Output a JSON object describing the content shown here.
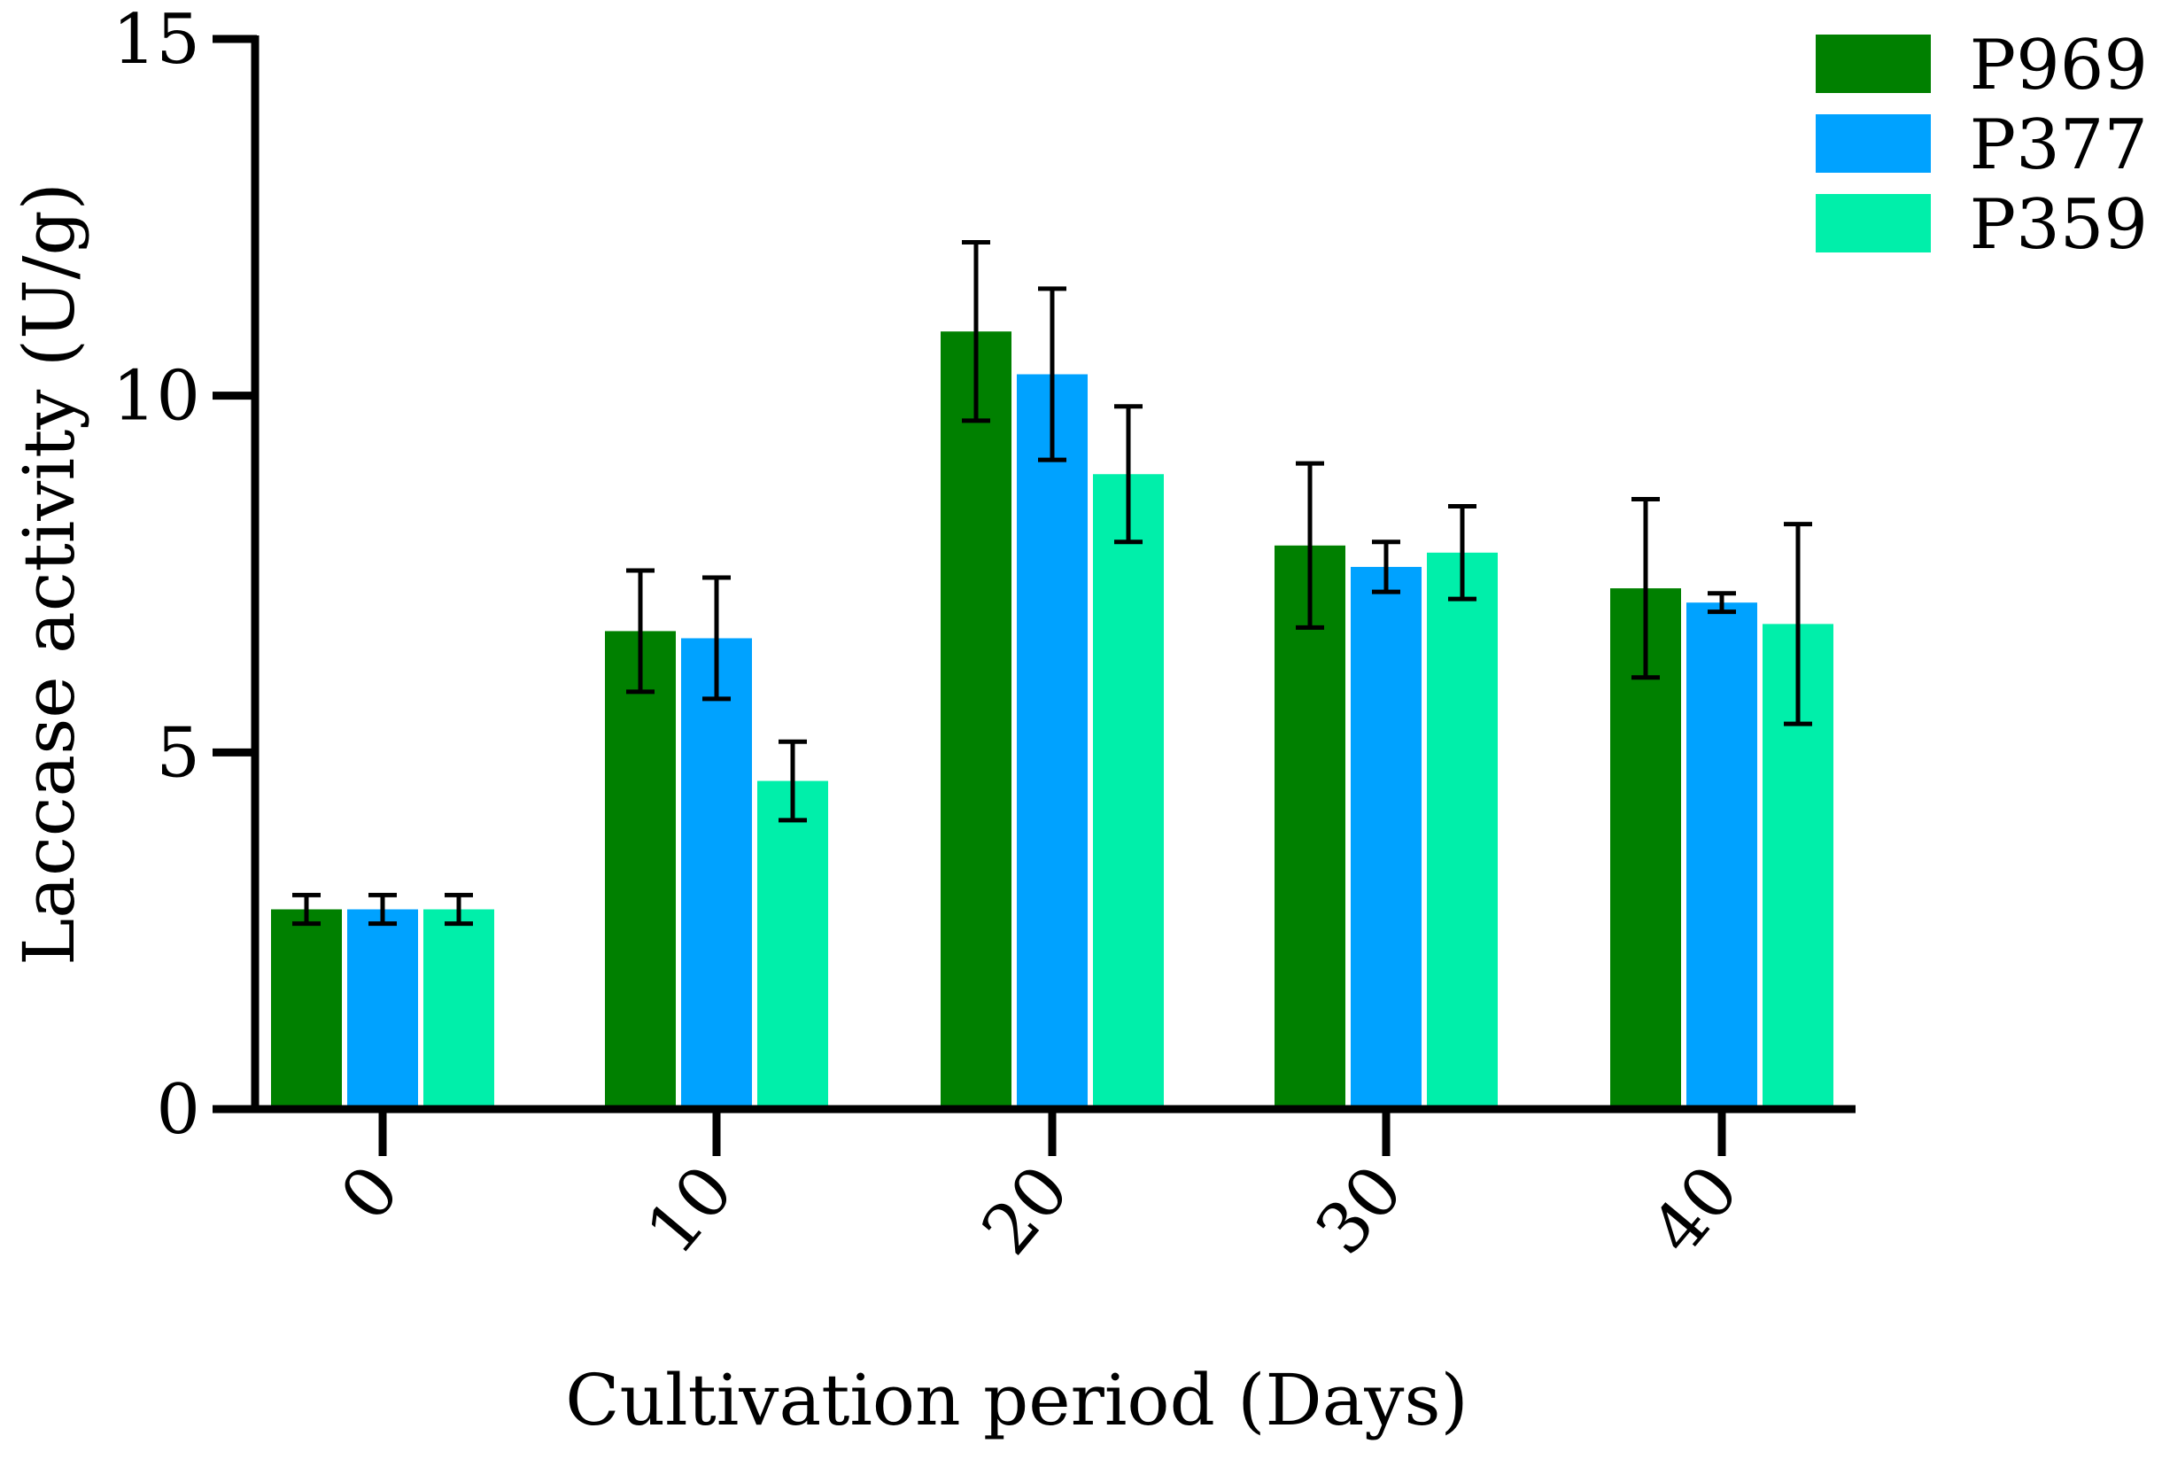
{
  "chart_data": {
    "type": "bar",
    "title": "",
    "xlabel": "Cultivation period (Days)",
    "ylabel": "Laccase activity (U/g)",
    "ylim": [
      0,
      15
    ],
    "yticks": [
      0,
      5,
      10,
      15
    ],
    "categories": [
      "0",
      "10",
      "20",
      "30",
      "40"
    ],
    "series": [
      {
        "name": "P969",
        "color": "#008000",
        "values": [
          2.8,
          6.7,
          10.9,
          7.9,
          7.3
        ],
        "errors": [
          0.2,
          0.85,
          1.25,
          1.15,
          1.25
        ]
      },
      {
        "name": "P377",
        "color": "#00A2FF",
        "values": [
          2.8,
          6.6,
          10.3,
          7.6,
          7.1
        ],
        "errors": [
          0.2,
          0.85,
          1.2,
          0.35,
          0.13
        ]
      },
      {
        "name": "P359",
        "color": "#00EFAA",
        "values": [
          2.8,
          4.6,
          8.9,
          7.8,
          6.8
        ],
        "errors": [
          0.2,
          0.55,
          0.95,
          0.65,
          1.4
        ]
      }
    ],
    "legend_position": "top-right",
    "grid": false
  }
}
